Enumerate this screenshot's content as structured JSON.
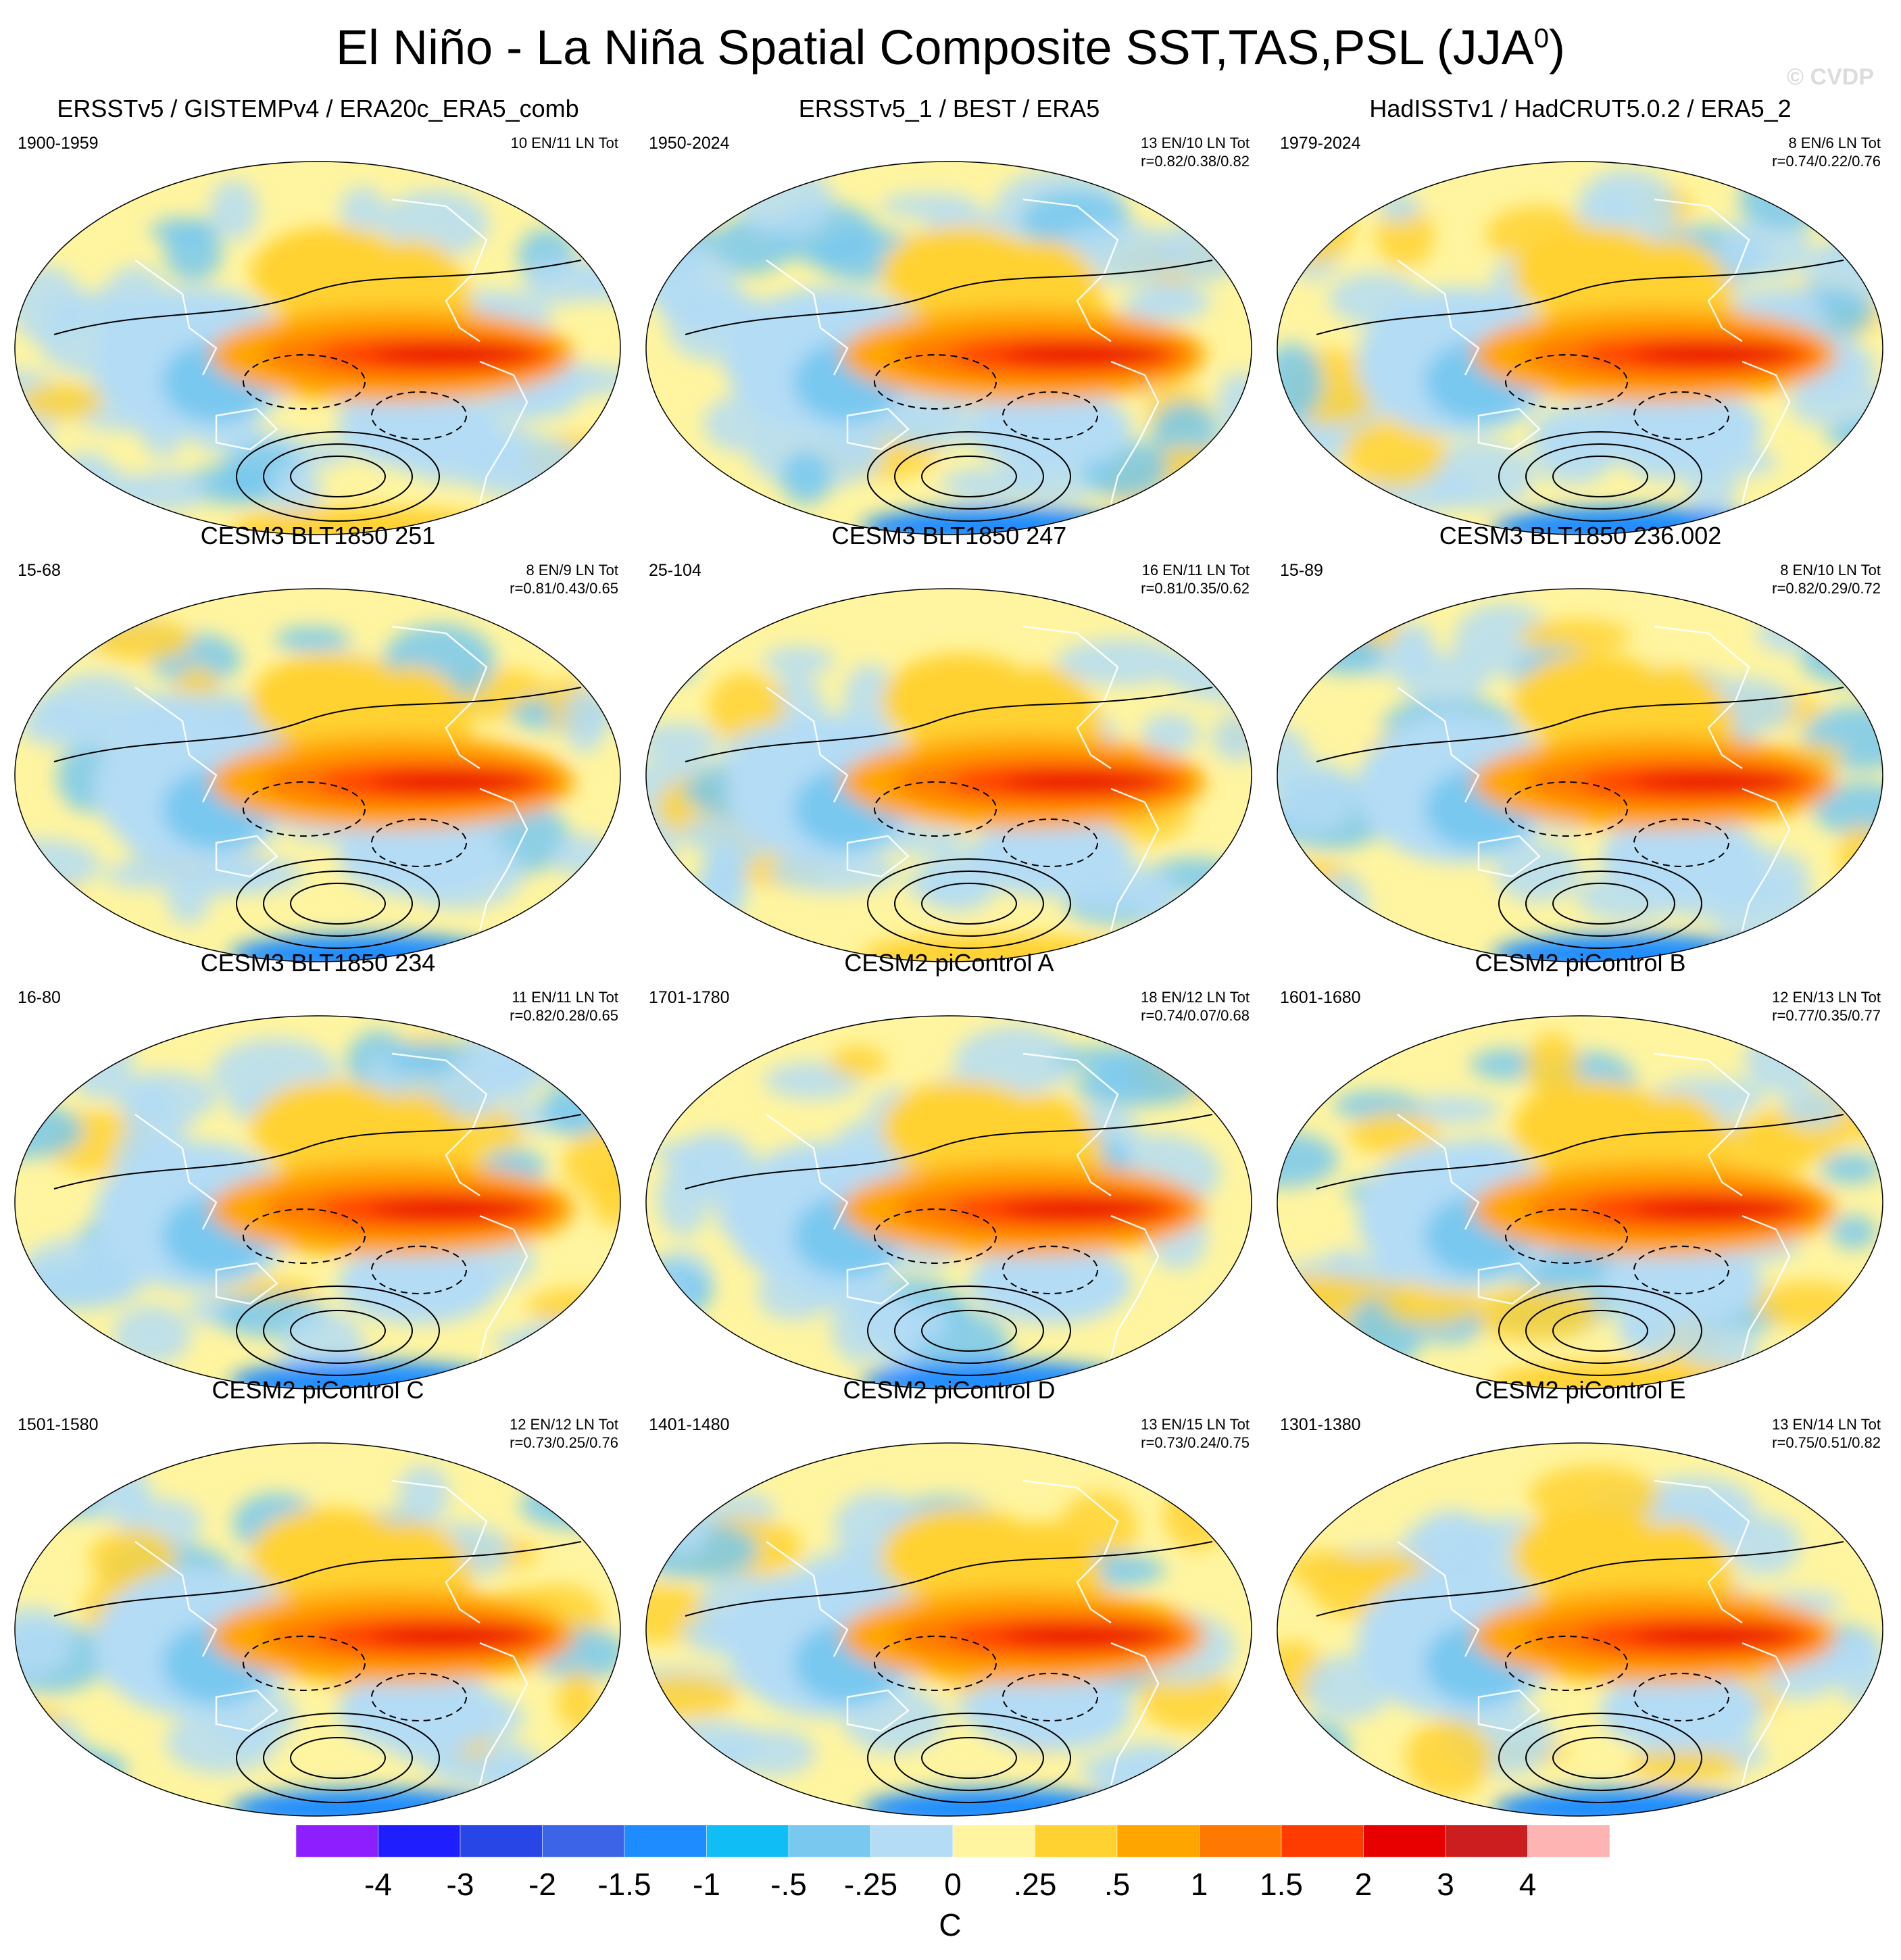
{
  "title_main": "El Niño - La Niña Spatial Composite SST,TAS,PSL (JJA",
  "title_sup": "0",
  "title_close": ")",
  "watermark": "© CVDP",
  "panels": [
    {
      "title": "ERSSTv5 / GISTEMPv4 / ERA20c_ERA5_comb",
      "period": "1900-1959",
      "stats1": "10 EN/11 LN Tot",
      "stats2": ""
    },
    {
      "title": "ERSSTv5_1 / BEST / ERA5",
      "period": "1950-2024",
      "stats1": "13 EN/10 LN Tot",
      "stats2": "r=0.82/0.38/0.82"
    },
    {
      "title": "HadISSTv1 / HadCRUT5.0.2 / ERA5_2",
      "period": "1979-2024",
      "stats1": "8 EN/6 LN Tot",
      "stats2": "r=0.74/0.22/0.76"
    },
    {
      "title": "CESM3 BLT1850 251",
      "period": "15-68",
      "stats1": "8 EN/9 LN Tot",
      "stats2": "r=0.81/0.43/0.65"
    },
    {
      "title": "CESM3 BLT1850 247",
      "period": "25-104",
      "stats1": "16 EN/11 LN Tot",
      "stats2": "r=0.81/0.35/0.62"
    },
    {
      "title": "CESM3 BLT1850 236.002",
      "period": "15-89",
      "stats1": "8 EN/10 LN Tot",
      "stats2": "r=0.82/0.29/0.72"
    },
    {
      "title": "CESM3 BLT1850 234",
      "period": "16-80",
      "stats1": "11 EN/11 LN Tot",
      "stats2": "r=0.82/0.28/0.65"
    },
    {
      "title": "CESM2 piControl A",
      "period": "1701-1780",
      "stats1": "18 EN/12 LN Tot",
      "stats2": "r=0.74/0.07/0.68"
    },
    {
      "title": "CESM2 piControl B",
      "period": "1601-1680",
      "stats1": "12 EN/13 LN Tot",
      "stats2": "r=0.77/0.35/0.77"
    },
    {
      "title": "CESM2 piControl C",
      "period": "1501-1580",
      "stats1": "12 EN/12 LN Tot",
      "stats2": "r=0.73/0.25/0.76"
    },
    {
      "title": "CESM2 piControl D",
      "period": "1401-1480",
      "stats1": "13 EN/15 LN Tot",
      "stats2": "r=0.73/0.24/0.75"
    },
    {
      "title": "CESM2 piControl E",
      "period": "1301-1380",
      "stats1": "13 EN/14 LN Tot",
      "stats2": "r=0.75/0.51/0.82"
    }
  ],
  "chart_data": {
    "type": "heatmap",
    "variable": "SST,TAS,PSL composite difference (El Niño minus La Niña)",
    "units_label": "C",
    "colorbar": {
      "ticks": [
        "-4",
        "-3",
        "-2",
        "-1.5",
        "-1",
        "-.5",
        "-.25",
        "0",
        ".25",
        ".5",
        "1",
        "1.5",
        "2",
        "3",
        "4"
      ],
      "colors": [
        "#8c1eff",
        "#1e1eff",
        "#2846e6",
        "#3c64e6",
        "#1e8cff",
        "#10bef5",
        "#78c8f0",
        "#b4dcf5",
        "#fff5a0",
        "#ffd232",
        "#ffa500",
        "#ff7800",
        "#ff3c00",
        "#e60000",
        "#cc1e1e",
        "#ffb4b4"
      ]
    }
  }
}
